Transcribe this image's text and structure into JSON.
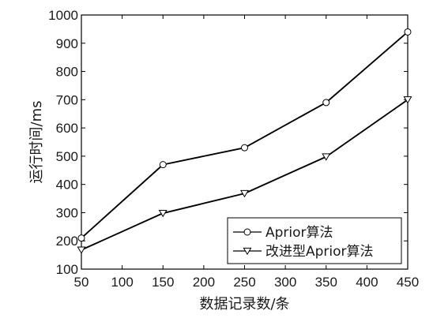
{
  "chart_data": {
    "type": "line",
    "title": "",
    "xlabel": "数据记录数/条",
    "ylabel": "运行时间/ms",
    "x": [
      50,
      150,
      250,
      350,
      450
    ],
    "xticks": [
      50,
      100,
      150,
      200,
      250,
      300,
      350,
      400,
      450
    ],
    "yticks": [
      100,
      200,
      300,
      400,
      500,
      600,
      700,
      800,
      900,
      1000
    ],
    "xlim": [
      50,
      450
    ],
    "ylim": [
      100,
      1000
    ],
    "grid": false,
    "legend_position": "bottom-right",
    "series": [
      {
        "name": "Aprior算法",
        "marker": "circle",
        "color": "#000000",
        "values": [
          210,
          470,
          530,
          690,
          940
        ]
      },
      {
        "name": "改进型Aprior算法",
        "marker": "triangle-down",
        "color": "#000000",
        "values": [
          168,
          298,
          368,
          498,
          700
        ]
      }
    ]
  }
}
